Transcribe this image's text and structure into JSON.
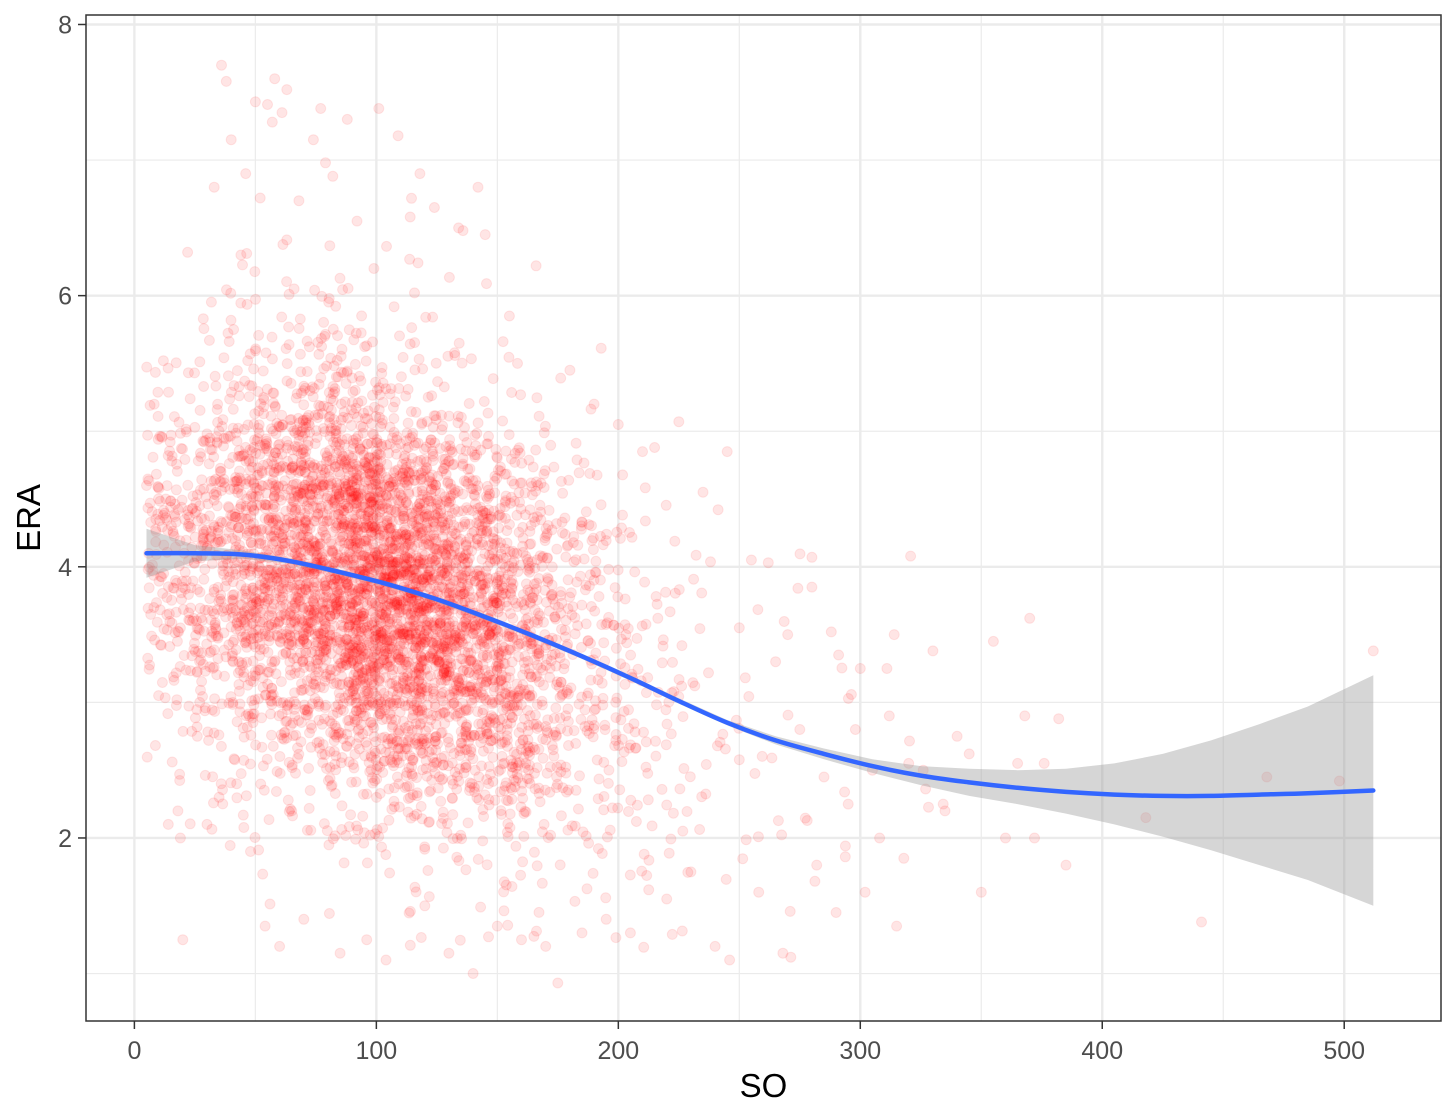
{
  "chart_data": {
    "type": "scatter",
    "title": "",
    "xlabel": "SO",
    "ylabel": "ERA",
    "xlim": [
      -20,
      540
    ],
    "ylim": [
      0.65,
      8.07
    ],
    "x_ticks": [
      0,
      100,
      200,
      300,
      400,
      500
    ],
    "x_tick_labels": [
      "0",
      "100",
      "200",
      "300",
      "400",
      "500"
    ],
    "y_ticks": [
      2,
      4,
      6,
      8
    ],
    "y_tick_labels": [
      "2",
      "4",
      "6",
      "8"
    ],
    "x_minor_ticks": [
      50,
      150,
      250,
      350,
      450
    ],
    "y_minor_ticks": [
      1,
      3,
      5,
      7
    ],
    "grid": true,
    "legend": "none",
    "colors": {
      "points": "#ff0000",
      "smooth_line": "#3366ff",
      "confidence_band": "#999999",
      "grid": "#ebebeb",
      "panel_border": "#333333"
    },
    "series": [
      {
        "type": "scatter",
        "point_alpha": 0.1,
        "note_visible": "dense cloud of several thousand semi-transparent points",
        "points": [
          [
            5,
            4.6
          ],
          [
            8,
            3.7
          ],
          [
            10,
            3.05
          ],
          [
            12,
            5.52
          ],
          [
            13,
            4.5
          ],
          [
            14,
            2.1
          ],
          [
            15,
            4.44
          ],
          [
            17,
            3.9
          ],
          [
            18,
            2.2
          ],
          [
            19,
            2.0
          ],
          [
            20,
            1.25
          ],
          [
            22,
            6.32
          ],
          [
            24,
            3.6
          ],
          [
            26,
            2.75
          ],
          [
            27,
            3.0
          ],
          [
            29,
            4.35
          ],
          [
            30,
            2.1
          ],
          [
            31,
            5.67
          ],
          [
            33,
            6.8
          ],
          [
            35,
            2.3
          ],
          [
            36,
            7.7
          ],
          [
            38,
            7.58
          ],
          [
            40,
            7.15
          ],
          [
            41,
            5.75
          ],
          [
            44,
            6.3
          ],
          [
            46,
            6.9
          ],
          [
            48,
            1.9
          ],
          [
            50,
            7.43
          ],
          [
            52,
            6.72
          ],
          [
            54,
            1.35
          ],
          [
            55,
            7.41
          ],
          [
            57,
            7.28
          ],
          [
            58,
            7.6
          ],
          [
            60,
            1.2
          ],
          [
            61,
            7.35
          ],
          [
            63,
            7.52
          ],
          [
            65,
            2.2
          ],
          [
            66,
            6.05
          ],
          [
            68,
            6.7
          ],
          [
            70,
            1.4
          ],
          [
            74,
            7.15
          ],
          [
            77,
            7.38
          ],
          [
            79,
            6.98
          ],
          [
            82,
            6.88
          ],
          [
            85,
            1.15
          ],
          [
            88,
            7.3
          ],
          [
            92,
            6.55
          ],
          [
            96,
            1.25
          ],
          [
            99,
            6.2
          ],
          [
            101,
            7.38
          ],
          [
            104,
            1.1
          ],
          [
            109,
            7.18
          ],
          [
            114,
            6.58
          ],
          [
            118,
            6.9
          ],
          [
            120,
            1.5
          ],
          [
            124,
            6.65
          ],
          [
            130,
            1.15
          ],
          [
            134,
            6.5
          ],
          [
            140,
            1.0
          ],
          [
            142,
            6.8
          ],
          [
            145,
            6.45
          ],
          [
            150,
            1.35
          ],
          [
            155,
            5.85
          ],
          [
            160,
            1.25
          ],
          [
            166,
            6.22
          ],
          [
            170,
            1.2
          ],
          [
            175,
            0.93
          ],
          [
            180,
            5.45
          ],
          [
            185,
            1.3
          ],
          [
            190,
            5.2
          ],
          [
            195,
            1.4
          ],
          [
            200,
            5.05
          ],
          [
            205,
            1.3
          ],
          [
            210,
            4.85
          ],
          [
            215,
            4.88
          ],
          [
            220,
            1.55
          ],
          [
            225,
            5.07
          ],
          [
            230,
            1.75
          ],
          [
            235,
            4.55
          ],
          [
            240,
            1.2
          ],
          [
            245,
            4.85
          ],
          [
            246,
            1.1
          ],
          [
            250,
            3.55
          ],
          [
            255,
            4.05
          ],
          [
            258,
            1.6
          ],
          [
            262,
            4.03
          ],
          [
            265,
            3.3
          ],
          [
            268,
            1.15
          ],
          [
            270,
            3.5
          ],
          [
            275,
            2.8
          ],
          [
            280,
            3.85
          ],
          [
            282,
            1.8
          ],
          [
            285,
            2.45
          ],
          [
            288,
            3.52
          ],
          [
            290,
            1.45
          ],
          [
            295,
            2.25
          ],
          [
            298,
            2.8
          ],
          [
            300,
            3.25
          ],
          [
            302,
            1.6
          ],
          [
            305,
            2.5
          ],
          [
            308,
            2.0
          ],
          [
            311,
            3.25
          ],
          [
            312,
            2.9
          ],
          [
            314,
            3.5
          ],
          [
            315,
            1.35
          ],
          [
            318,
            1.85
          ],
          [
            320,
            2.55
          ],
          [
            326,
            2.5
          ],
          [
            330,
            3.38
          ],
          [
            335,
            2.2
          ],
          [
            340,
            2.75
          ],
          [
            345,
            2.62
          ],
          [
            350,
            1.6
          ],
          [
            355,
            3.45
          ],
          [
            360,
            2.0
          ],
          [
            365,
            2.55
          ],
          [
            368,
            2.9
          ],
          [
            370,
            3.62
          ],
          [
            372,
            2.0
          ],
          [
            376,
            2.55
          ],
          [
            382,
            2.88
          ],
          [
            385,
            1.8
          ],
          [
            418,
            2.15
          ],
          [
            441,
            1.38
          ],
          [
            468,
            2.45
          ],
          [
            498,
            2.42
          ],
          [
            512,
            3.38
          ]
        ]
      },
      {
        "type": "line",
        "smooth": true,
        "method": "loess",
        "x": [
          5,
          25,
          45,
          65,
          85,
          105,
          125,
          145,
          165,
          185,
          205,
          225,
          245,
          265,
          285,
          305,
          325,
          345,
          365,
          385,
          405,
          425,
          445,
          465,
          485,
          512
        ],
        "y": [
          4.1,
          4.1,
          4.09,
          4.04,
          3.96,
          3.87,
          3.76,
          3.63,
          3.49,
          3.34,
          3.18,
          3.01,
          2.85,
          2.72,
          2.62,
          2.53,
          2.46,
          2.41,
          2.37,
          2.34,
          2.32,
          2.31,
          2.31,
          2.32,
          2.33,
          2.35
        ]
      },
      {
        "type": "area",
        "confidence_band": true,
        "x": [
          5,
          25,
          45,
          65,
          85,
          105,
          125,
          145,
          165,
          185,
          205,
          225,
          245,
          265,
          285,
          305,
          325,
          345,
          365,
          385,
          405,
          425,
          445,
          465,
          485,
          512
        ],
        "lower": [
          3.92,
          4.04,
          4.06,
          4.02,
          3.94,
          3.85,
          3.74,
          3.61,
          3.47,
          3.32,
          3.16,
          2.99,
          2.83,
          2.69,
          2.58,
          2.48,
          2.39,
          2.31,
          2.25,
          2.18,
          2.1,
          2.01,
          1.91,
          1.8,
          1.69,
          1.5
        ],
        "upper": [
          4.28,
          4.16,
          4.12,
          4.06,
          3.98,
          3.89,
          3.78,
          3.65,
          3.51,
          3.36,
          3.2,
          3.03,
          2.87,
          2.75,
          2.66,
          2.58,
          2.53,
          2.51,
          2.5,
          2.51,
          2.55,
          2.62,
          2.72,
          2.84,
          2.97,
          3.2
        ]
      }
    ]
  }
}
